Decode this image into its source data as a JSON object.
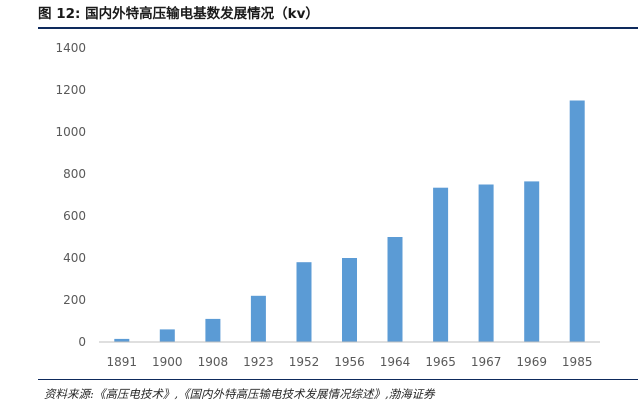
{
  "figure": {
    "title": "图 12:  国内外特高压输电基数发展情况（kv）",
    "source": "资料来源:《高压电技术》,《国内外特高压输电技术发展情况综述》,渤海证券"
  },
  "colors": {
    "bar": "#5b9bd5",
    "axis": "#bfbfbf",
    "grid": "#d9d9d9",
    "rule": "#0e2a5c"
  },
  "chart_data": {
    "type": "bar",
    "categories": [
      "1891",
      "1900",
      "1908",
      "1923",
      "1952",
      "1956",
      "1964",
      "1965",
      "1967",
      "1969",
      "1985"
    ],
    "values": [
      15,
      60,
      110,
      220,
      380,
      400,
      500,
      735,
      750,
      765,
      1150
    ],
    "title": "",
    "xlabel": "",
    "ylabel": "",
    "ylim": [
      0,
      1400
    ],
    "yticks": [
      0,
      200,
      400,
      600,
      800,
      1000,
      1200,
      1400
    ],
    "grid": false,
    "legend": "none"
  }
}
